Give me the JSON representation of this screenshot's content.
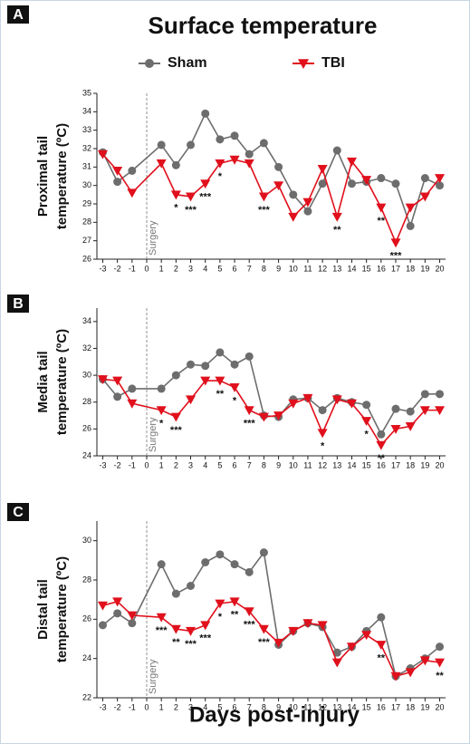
{
  "title": "Surface temperature",
  "xlabel": "Days post-injury",
  "chart_data": [
    {
      "type": "line",
      "panel_label": "A",
      "ylabel": [
        "Proximal tail",
        "temperature (ºC)"
      ],
      "x": [
        -3,
        -2,
        -1,
        1,
        2,
        3,
        4,
        5,
        6,
        7,
        8,
        9,
        10,
        11,
        12,
        13,
        14,
        15,
        16,
        17,
        18,
        19,
        20
      ],
      "xlim": [
        -3.4,
        20.4
      ],
      "xticks": [
        -3,
        -2,
        -1,
        0,
        1,
        2,
        3,
        4,
        5,
        6,
        7,
        8,
        9,
        10,
        11,
        12,
        13,
        14,
        15,
        16,
        17,
        18,
        19,
        20
      ],
      "ylim": [
        26,
        35
      ],
      "yticks": [
        26,
        27,
        28,
        29,
        30,
        31,
        32,
        33,
        34,
        35
      ],
      "annotations": [
        {
          "text": "Surgery",
          "x": 0
        }
      ],
      "series": [
        {
          "name": "Sham",
          "color": "#6d6d6d",
          "marker": "circle",
          "values": [
            31.8,
            30.2,
            30.8,
            32.2,
            31.1,
            32.2,
            33.9,
            32.5,
            32.7,
            31.7,
            32.3,
            31.0,
            29.5,
            28.6,
            30.1,
            31.9,
            30.1,
            30.2,
            30.4,
            30.1,
            27.8,
            30.4,
            30.0
          ]
        },
        {
          "name": "TBI",
          "color": "#e0101c",
          "marker": "triangle-down",
          "values": [
            31.7,
            30.8,
            29.6,
            31.2,
            29.5,
            29.4,
            30.1,
            31.2,
            31.4,
            31.2,
            29.4,
            30.0,
            28.3,
            29.1,
            30.9,
            28.3,
            31.3,
            30.3,
            28.8,
            26.9,
            28.8,
            29.4,
            30.4
          ],
          "significance": [
            null,
            null,
            null,
            null,
            "*",
            "***",
            "***",
            "*",
            null,
            null,
            "***",
            null,
            null,
            null,
            null,
            "**",
            null,
            null,
            "**",
            "***",
            null,
            null,
            null
          ]
        }
      ]
    },
    {
      "type": "line",
      "panel_label": "B",
      "ylabel": [
        "Media tail",
        "temperature (ºC)"
      ],
      "x": [
        -3,
        -2,
        -1,
        1,
        2,
        3,
        4,
        5,
        6,
        7,
        8,
        9,
        10,
        11,
        12,
        13,
        14,
        15,
        16,
        17,
        18,
        19,
        20
      ],
      "xlim": [
        -3.4,
        20.4
      ],
      "xticks": [
        -3,
        -2,
        -1,
        0,
        1,
        2,
        3,
        4,
        5,
        6,
        7,
        8,
        9,
        10,
        11,
        12,
        13,
        14,
        15,
        16,
        17,
        18,
        19,
        20
      ],
      "ylim": [
        24,
        35
      ],
      "yticks": [
        24,
        26,
        28,
        30,
        32,
        34
      ],
      "annotations": [
        {
          "text": "Surgery",
          "x": 0
        }
      ],
      "series": [
        {
          "color": "#6d6d6d",
          "marker": "circle",
          "values": [
            29.7,
            28.4,
            29.0,
            29.0,
            30.0,
            30.8,
            30.7,
            31.7,
            30.8,
            31.4,
            27.0,
            26.9,
            28.2,
            28.3,
            27.4,
            28.3,
            28.0,
            27.8,
            25.6,
            27.5,
            27.3,
            28.6,
            28.6
          ]
        },
        {
          "color": "#e0101c",
          "marker": "triangle-down",
          "values": [
            29.7,
            29.6,
            27.9,
            27.4,
            26.9,
            28.2,
            29.6,
            29.6,
            29.1,
            27.4,
            26.9,
            27.0,
            27.9,
            28.3,
            25.7,
            28.2,
            27.9,
            26.6,
            24.8,
            26.0,
            26.2,
            27.4,
            27.4
          ],
          "significance": [
            null,
            null,
            null,
            "*",
            "***",
            null,
            null,
            "**",
            "*",
            "***",
            null,
            null,
            null,
            null,
            "*",
            null,
            null,
            "*",
            "**",
            null,
            null,
            null,
            null
          ]
        }
      ]
    },
    {
      "type": "line",
      "panel_label": "C",
      "ylabel": [
        "Distal tail",
        "temperature (ºC)"
      ],
      "x": [
        -3,
        -2,
        -1,
        1,
        2,
        3,
        4,
        5,
        6,
        7,
        8,
        9,
        10,
        11,
        12,
        13,
        14,
        15,
        16,
        17,
        18,
        19,
        20
      ],
      "xlim": [
        -3.4,
        20.4
      ],
      "xticks": [
        -3,
        -2,
        -1,
        0,
        1,
        2,
        3,
        4,
        5,
        6,
        7,
        8,
        9,
        10,
        11,
        12,
        13,
        14,
        15,
        16,
        17,
        18,
        19,
        20
      ],
      "ylim": [
        22,
        31
      ],
      "yticks": [
        22,
        24,
        26,
        28,
        30
      ],
      "annotations": [
        {
          "text": "Surgery",
          "x": 0
        }
      ],
      "series": [
        {
          "color": "#6d6d6d",
          "marker": "circle",
          "values": [
            25.7,
            26.3,
            25.8,
            28.8,
            27.3,
            27.7,
            28.9,
            29.3,
            28.8,
            28.4,
            29.4,
            24.7,
            25.4,
            25.8,
            25.6,
            24.3,
            24.6,
            25.4,
            26.1,
            23.1,
            23.5,
            24.0,
            24.6
          ]
        },
        {
          "color": "#e0101c",
          "marker": "triangle-down",
          "values": [
            26.7,
            26.9,
            26.2,
            26.1,
            25.5,
            25.4,
            25.7,
            26.8,
            26.9,
            26.4,
            25.5,
            24.8,
            25.4,
            25.8,
            25.7,
            23.8,
            24.6,
            25.2,
            24.7,
            23.1,
            23.3,
            23.9,
            23.8
          ],
          "significance": [
            null,
            null,
            null,
            "***",
            "**",
            "***",
            "***",
            "*",
            "**",
            "***",
            "***",
            null,
            null,
            null,
            null,
            null,
            null,
            null,
            "**",
            null,
            null,
            null,
            "**"
          ]
        }
      ]
    }
  ]
}
